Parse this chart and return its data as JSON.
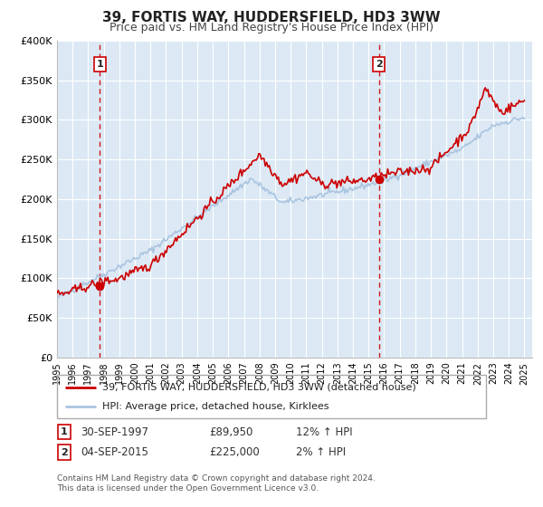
{
  "title": "39, FORTIS WAY, HUDDERSFIELD, HD3 3WW",
  "subtitle": "Price paid vs. HM Land Registry's House Price Index (HPI)",
  "ylim": [
    0,
    400000
  ],
  "xlim_start": 1995.0,
  "xlim_end": 2025.5,
  "background_color": "#ffffff",
  "plot_bg_color": "#dce9f5",
  "grid_color": "#ffffff",
  "hpi_color": "#aac4e0",
  "property_color": "#cc0000",
  "sale1_date": 1997.75,
  "sale1_price": 89950,
  "sale1_label": "1",
  "sale2_date": 2015.67,
  "sale2_price": 225000,
  "sale2_label": "2",
  "legend_property": "39, FORTIS WAY, HUDDERSFIELD, HD3 3WW (detached house)",
  "legend_hpi": "HPI: Average price, detached house, Kirklees",
  "note1_label": "1",
  "note1_date": "30-SEP-1997",
  "note1_price": "£89,950",
  "note1_pct": "12% ↑ HPI",
  "note2_label": "2",
  "note2_date": "04-SEP-2015",
  "note2_price": "£225,000",
  "note2_pct": "2% ↑ HPI",
  "footer_line1": "Contains HM Land Registry data © Crown copyright and database right 2024.",
  "footer_line2": "This data is licensed under the Open Government Licence v3.0.",
  "title_fontsize": 11,
  "subtitle_fontsize": 9
}
